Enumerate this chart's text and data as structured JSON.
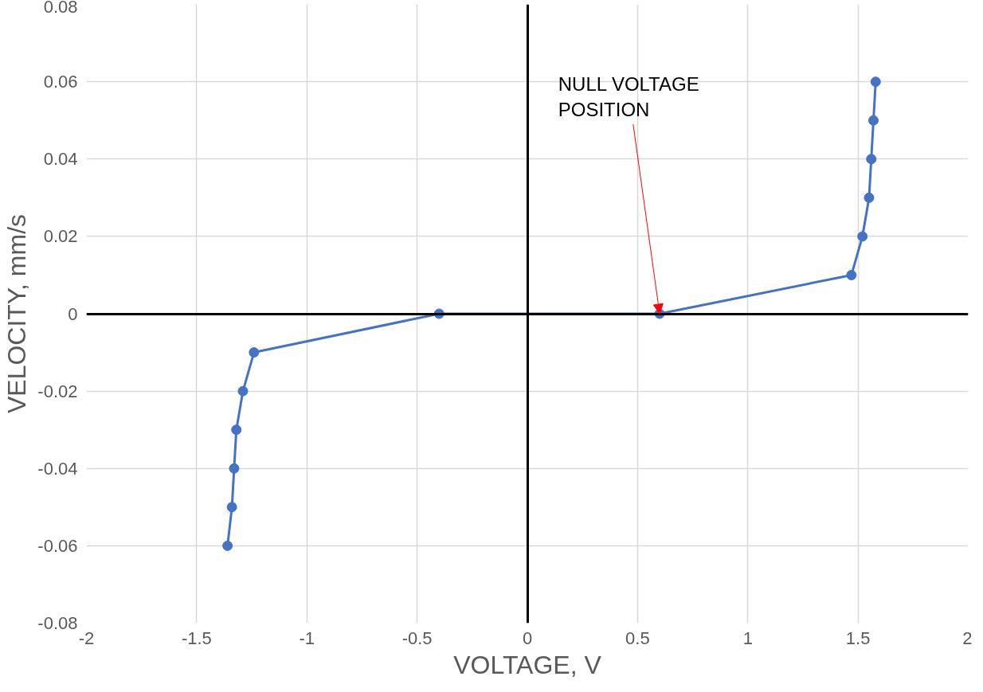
{
  "chart_data": {
    "type": "line",
    "xlabel": "VOLTAGE, V",
    "ylabel": "VELOCITY, mm/s",
    "x": [
      -1.36,
      -1.34,
      -1.33,
      -1.32,
      -1.29,
      -1.24,
      -0.4,
      0.6,
      1.47,
      1.52,
      1.55,
      1.56,
      1.57,
      1.58
    ],
    "series": [
      {
        "color": "#4472c4",
        "values": [
          -0.06,
          -0.05,
          -0.04,
          -0.03,
          -0.02,
          -0.01,
          0,
          0,
          0.01,
          0.02,
          0.03,
          0.04,
          0.05,
          0.06
        ]
      }
    ],
    "xlim": [
      -2,
      2
    ],
    "xticks": [
      -2,
      -1.5,
      -1,
      -0.5,
      0,
      0.5,
      1,
      1.5,
      2
    ],
    "ylim": [
      -0.08,
      0.08
    ],
    "yticks": [
      -0.08,
      -0.06,
      -0.04,
      -0.02,
      0,
      0.02,
      0.04,
      0.06,
      0.08
    ],
    "annotations": [
      {
        "text": "NULL VOLTAGE\nPOSITION",
        "x": 0.6,
        "y": 0
      }
    ],
    "grid": true,
    "marker": "circle",
    "line_style": "solid"
  }
}
